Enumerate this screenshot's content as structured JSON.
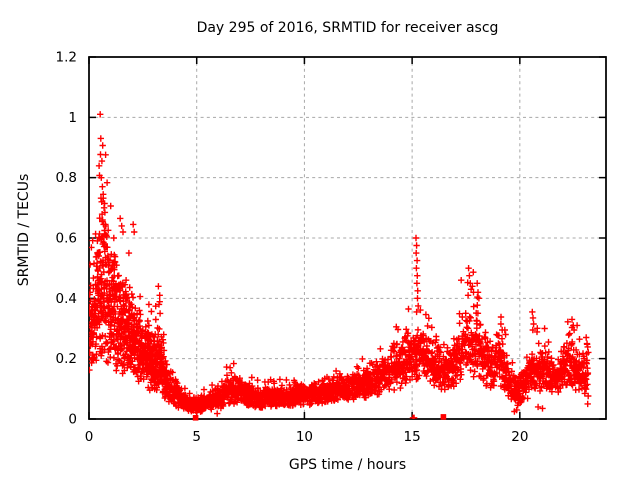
{
  "window": {
    "background": "#ffffff"
  },
  "chart_data": {
    "type": "scatter",
    "title": "Day 295 of 2016, SRMTID for receiver ascg",
    "xlabel": "GPS time / hours",
    "ylabel": "SRMTID / TECUs",
    "xlim": [
      0,
      24
    ],
    "ylim": [
      0,
      1.2
    ],
    "xticks": [
      0,
      5,
      10,
      15,
      20
    ],
    "xtick_labels": [
      "0",
      "5",
      "10",
      "15",
      "20"
    ],
    "yticks": [
      0,
      0.2,
      0.4,
      0.6,
      0.8,
      1.0,
      1.2
    ],
    "ytick_labels": [
      "0",
      "0.2",
      "0.4",
      "0.6",
      "0.8",
      "1",
      "1.2"
    ],
    "grid": true,
    "legend": "none",
    "marker": "plus",
    "marker_color": "#ff0000",
    "grid_color": "#a8a8a8",
    "border_color": "#000000",
    "series": {
      "name": "SRMTID",
      "sampling_step_hours": 0.009,
      "time_range_hours": [
        0.02,
        23.18
      ],
      "seed": 1234,
      "band_envelope": [
        [
          0.02,
          0.13,
          0.44
        ],
        [
          0.3,
          0.15,
          0.55
        ],
        [
          0.5,
          0.18,
          0.78
        ],
        [
          0.8,
          0.17,
          0.72
        ],
        [
          1.0,
          0.15,
          0.62
        ],
        [
          1.5,
          0.14,
          0.52
        ],
        [
          2.0,
          0.13,
          0.44
        ],
        [
          2.5,
          0.1,
          0.36
        ],
        [
          3.0,
          0.08,
          0.31
        ],
        [
          3.3,
          0.07,
          0.34
        ],
        [
          3.6,
          0.055,
          0.2
        ],
        [
          4.0,
          0.04,
          0.14
        ],
        [
          4.4,
          0.025,
          0.095
        ],
        [
          5.0,
          0.02,
          0.075
        ],
        [
          5.5,
          0.025,
          0.095
        ],
        [
          6.0,
          0.03,
          0.12
        ],
        [
          6.6,
          0.04,
          0.165
        ],
        [
          7.0,
          0.05,
          0.145
        ],
        [
          7.5,
          0.04,
          0.12
        ],
        [
          8.0,
          0.035,
          0.11
        ],
        [
          9.0,
          0.04,
          0.12
        ],
        [
          10.0,
          0.045,
          0.125
        ],
        [
          11.0,
          0.05,
          0.14
        ],
        [
          12.0,
          0.06,
          0.16
        ],
        [
          13.0,
          0.07,
          0.185
        ],
        [
          13.5,
          0.08,
          0.205
        ],
        [
          14.0,
          0.09,
          0.245
        ],
        [
          14.6,
          0.1,
          0.3
        ],
        [
          15.0,
          0.11,
          0.32
        ],
        [
          15.4,
          0.13,
          0.33
        ],
        [
          15.8,
          0.11,
          0.28
        ],
        [
          16.1,
          0.1,
          0.29
        ],
        [
          16.5,
          0.09,
          0.23
        ],
        [
          17.0,
          0.1,
          0.3
        ],
        [
          17.6,
          0.13,
          0.43
        ],
        [
          18.1,
          0.12,
          0.38
        ],
        [
          18.5,
          0.1,
          0.28
        ],
        [
          19.1,
          0.1,
          0.3
        ],
        [
          19.6,
          0.05,
          0.18
        ],
        [
          19.9,
          0.04,
          0.15
        ],
        [
          20.3,
          0.06,
          0.2
        ],
        [
          20.7,
          0.09,
          0.28
        ],
        [
          21.1,
          0.08,
          0.24
        ],
        [
          21.6,
          0.08,
          0.21
        ],
        [
          22.0,
          0.09,
          0.25
        ],
        [
          22.4,
          0.1,
          0.3
        ],
        [
          22.8,
          0.08,
          0.24
        ],
        [
          23.18,
          0.05,
          0.26
        ]
      ],
      "feature_points": [
        [
          0.52,
          1.01
        ],
        [
          0.55,
          0.93
        ],
        [
          0.6,
          0.855
        ],
        [
          0.57,
          0.8
        ],
        [
          0.62,
          0.77
        ],
        [
          0.66,
          0.745
        ],
        [
          0.59,
          0.72
        ],
        [
          0.7,
          0.7
        ],
        [
          0.74,
          0.685
        ],
        [
          0.63,
          0.66
        ],
        [
          0.68,
          0.645
        ],
        [
          0.72,
          0.625
        ],
        [
          0.77,
          0.61
        ],
        [
          0.58,
          0.595
        ],
        [
          0.64,
          0.58
        ],
        [
          0.8,
          0.57
        ],
        [
          1.15,
          0.6
        ],
        [
          1.45,
          0.665
        ],
        [
          1.52,
          0.64
        ],
        [
          1.58,
          0.62
        ],
        [
          1.85,
          0.55
        ],
        [
          2.05,
          0.645
        ],
        [
          2.1,
          0.62
        ],
        [
          0.05,
          0.42
        ],
        [
          0.07,
          0.39
        ],
        [
          0.04,
          0.35
        ],
        [
          0.06,
          0.31
        ],
        [
          3.22,
          0.44
        ],
        [
          3.28,
          0.41
        ],
        [
          3.25,
          0.38
        ],
        [
          3.3,
          0.35
        ],
        [
          6.55,
          0.17
        ],
        [
          15.18,
          0.6
        ],
        [
          15.21,
          0.575
        ],
        [
          15.19,
          0.55
        ],
        [
          15.23,
          0.525
        ],
        [
          15.2,
          0.5
        ],
        [
          15.24,
          0.475
        ],
        [
          15.22,
          0.45
        ],
        [
          15.26,
          0.425
        ],
        [
          15.25,
          0.4
        ],
        [
          15.28,
          0.375
        ],
        [
          15.21,
          0.355
        ],
        [
          17.28,
          0.46
        ],
        [
          17.62,
          0.5
        ],
        [
          17.66,
          0.475
        ],
        [
          17.7,
          0.45
        ],
        [
          17.74,
          0.43
        ],
        [
          17.6,
          0.41
        ],
        [
          17.8,
          0.44
        ],
        [
          17.85,
          0.42
        ],
        [
          18.02,
          0.45
        ],
        [
          18.06,
          0.42
        ],
        [
          18.1,
          0.4
        ],
        [
          19.12,
          0.315
        ],
        [
          19.18,
          0.295
        ],
        [
          19.3,
          0.295
        ],
        [
          20.58,
          0.355
        ],
        [
          20.61,
          0.335
        ],
        [
          20.64,
          0.315
        ],
        [
          20.6,
          0.295
        ],
        [
          21.15,
          0.3
        ],
        [
          22.42,
          0.33
        ],
        [
          22.48,
          0.31
        ],
        [
          22.52,
          0.295
        ],
        [
          23.08,
          0.27
        ],
        [
          23.12,
          0.25
        ],
        [
          19.85,
          0.03
        ],
        [
          20.85,
          0.04
        ],
        [
          21.05,
          0.035
        ],
        [
          23.15,
          0.05
        ],
        [
          5.95,
          0.018
        ],
        [
          19.75,
          0.025
        ],
        [
          15.04,
          0.004
        ],
        [
          15.09,
          0.004
        ]
      ],
      "axis_square_markers": [
        [
          4.95,
          0.004
        ],
        [
          16.45,
          0.007
        ]
      ]
    }
  }
}
